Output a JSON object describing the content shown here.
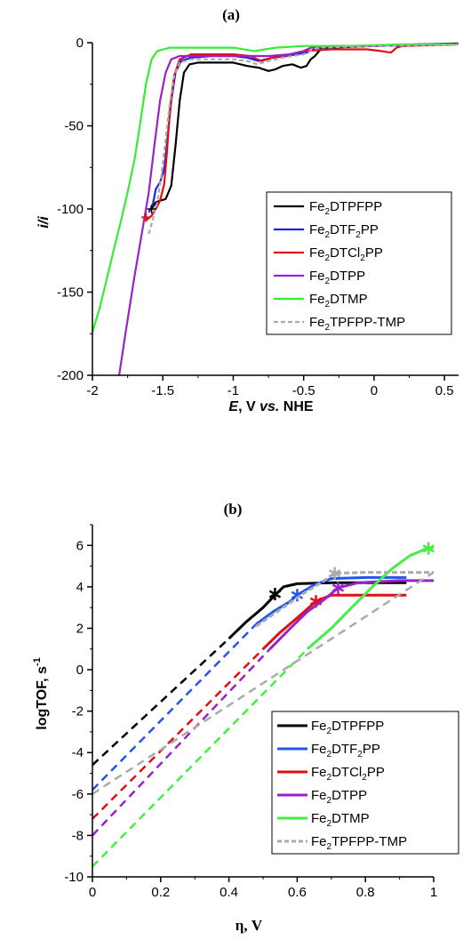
{
  "chart_data": [
    {
      "type": "line",
      "title": "(a)",
      "xlabel": {
        "italic": "E",
        "rest": ", V ",
        "italic2": "vs.",
        "rest2": " NHE"
      },
      "ylabel": "i/i",
      "xlim": [
        -2,
        0.6
      ],
      "ylim": [
        -200,
        0
      ],
      "xticks": [
        "-2",
        "-1.5",
        "-1",
        "-0.5",
        "0",
        "0.5"
      ],
      "yticks": [
        "0",
        "-50",
        "-100",
        "-150",
        "-200"
      ],
      "legend_position": "center-right",
      "series": [
        {
          "name": "Fe2DTPFPP",
          "label": [
            "Fe",
            "2",
            "DTPFPP"
          ],
          "color": "#000000",
          "dash": false,
          "points": [
            [
              -1.58,
              -100
            ],
            [
              -1.55,
              -96
            ],
            [
              -1.52,
              -95
            ],
            [
              -1.48,
              -94
            ],
            [
              -1.44,
              -86
            ],
            [
              -1.41,
              -62
            ],
            [
              -1.38,
              -35
            ],
            [
              -1.35,
              -18
            ],
            [
              -1.31,
              -13
            ],
            [
              -1.25,
              -12
            ],
            [
              -1.15,
              -12
            ],
            [
              -1.0,
              -12
            ],
            [
              -0.9,
              -14
            ],
            [
              -0.82,
              -15
            ],
            [
              -0.75,
              -17
            ],
            [
              -0.7,
              -16
            ],
            [
              -0.65,
              -14
            ],
            [
              -0.58,
              -13
            ],
            [
              -0.52,
              -15
            ],
            [
              -0.48,
              -14
            ],
            [
              -0.45,
              -10
            ],
            [
              -0.42,
              -8
            ],
            [
              -0.38,
              -4
            ],
            [
              -0.3,
              -3
            ],
            [
              0,
              -2
            ],
            [
              0.3,
              -1
            ],
            [
              0.6,
              -0.5
            ]
          ]
        },
        {
          "name": "Fe2DTF2PP",
          "label": [
            "Fe",
            "2",
            "DTF",
            "2",
            "PP"
          ],
          "color": "#2222dd",
          "dash": false,
          "points": [
            [
              -1.6,
              -102
            ],
            [
              -1.57,
              -97
            ],
            [
              -1.55,
              -88
            ],
            [
              -1.52,
              -84
            ],
            [
              -1.49,
              -76
            ],
            [
              -1.47,
              -60
            ],
            [
              -1.44,
              -35
            ],
            [
              -1.41,
              -18
            ],
            [
              -1.37,
              -11
            ],
            [
              -1.3,
              -9
            ],
            [
              -1.15,
              -8
            ],
            [
              -1.0,
              -8
            ],
            [
              -0.9,
              -9
            ],
            [
              -0.82,
              -11
            ],
            [
              -0.72,
              -9
            ],
            [
              -0.62,
              -8
            ],
            [
              -0.55,
              -7
            ],
            [
              -0.48,
              -6
            ],
            [
              -0.4,
              -3
            ],
            [
              0,
              -2
            ],
            [
              0.3,
              -1.5
            ],
            [
              0.6,
              -1
            ]
          ]
        },
        {
          "name": "Fe2DTCl2PP",
          "label": [
            "Fe",
            "2",
            "DTCl",
            "2",
            "PP"
          ],
          "color": "#dd1111",
          "dash": false,
          "points": [
            [
              -1.62,
              -107
            ],
            [
              -1.58,
              -104
            ],
            [
              -1.55,
              -100
            ],
            [
              -1.52,
              -95
            ],
            [
              -1.49,
              -85
            ],
            [
              -1.47,
              -65
            ],
            [
              -1.45,
              -40
            ],
            [
              -1.42,
              -20
            ],
            [
              -1.38,
              -10
            ],
            [
              -1.3,
              -7
            ],
            [
              -1.15,
              -7
            ],
            [
              -1.0,
              -7
            ],
            [
              -0.88,
              -8
            ],
            [
              -0.8,
              -11
            ],
            [
              -0.72,
              -9
            ],
            [
              -0.6,
              -7
            ],
            [
              -0.5,
              -5
            ],
            [
              -0.3,
              -4
            ],
            [
              -0.05,
              -4
            ],
            [
              0.05,
              -5
            ],
            [
              0.12,
              -6
            ],
            [
              0.16,
              -3
            ],
            [
              0.2,
              -2
            ],
            [
              0.6,
              -1
            ]
          ]
        },
        {
          "name": "Fe2DTPP",
          "label": [
            "Fe",
            "2",
            "DTPP"
          ],
          "color": "#9922cc",
          "dash": false,
          "points": [
            [
              -1.81,
              -200
            ],
            [
              -1.76,
              -172
            ],
            [
              -1.7,
              -140
            ],
            [
              -1.65,
              -115
            ],
            [
              -1.6,
              -90
            ],
            [
              -1.56,
              -62
            ],
            [
              -1.52,
              -35
            ],
            [
              -1.48,
              -18
            ],
            [
              -1.44,
              -10
            ],
            [
              -1.38,
              -8
            ],
            [
              -1.25,
              -8
            ],
            [
              -1.0,
              -8
            ],
            [
              -0.85,
              -8
            ],
            [
              -0.75,
              -8
            ],
            [
              -0.6,
              -7
            ],
            [
              -0.5,
              -5
            ],
            [
              -0.45,
              -3
            ],
            [
              -0.3,
              -2
            ],
            [
              0,
              -2
            ],
            [
              0.6,
              -1
            ]
          ]
        },
        {
          "name": "Fe2DTMP",
          "label": [
            "Fe",
            "2",
            "DTMP"
          ],
          "color": "#33ee33",
          "dash": false,
          "points": [
            [
              -2.0,
              -174
            ],
            [
              -1.95,
              -160
            ],
            [
              -1.9,
              -143
            ],
            [
              -1.85,
              -125
            ],
            [
              -1.8,
              -108
            ],
            [
              -1.75,
              -90
            ],
            [
              -1.7,
              -70
            ],
            [
              -1.66,
              -48
            ],
            [
              -1.62,
              -25
            ],
            [
              -1.58,
              -10
            ],
            [
              -1.54,
              -5
            ],
            [
              -1.45,
              -3
            ],
            [
              -1.2,
              -3
            ],
            [
              -1.0,
              -3
            ],
            [
              -0.85,
              -5
            ],
            [
              -0.7,
              -3
            ],
            [
              -0.5,
              -2
            ],
            [
              -0.2,
              -2
            ],
            [
              0.2,
              -1
            ],
            [
              0.6,
              -1
            ]
          ]
        },
        {
          "name": "Fe2TPFPP-TMP",
          "label": [
            "Fe",
            "2",
            "TPFPP-TMP"
          ],
          "color": "#aaaaaa",
          "dash": true,
          "points": [
            [
              -1.6,
              -115
            ],
            [
              -1.57,
              -106
            ],
            [
              -1.54,
              -96
            ],
            [
              -1.51,
              -80
            ],
            [
              -1.48,
              -58
            ],
            [
              -1.45,
              -36
            ],
            [
              -1.42,
              -20
            ],
            [
              -1.38,
              -12
            ],
            [
              -1.3,
              -10
            ],
            [
              -1.15,
              -10
            ],
            [
              -1.0,
              -10
            ],
            [
              -0.9,
              -11
            ],
            [
              -0.83,
              -13
            ],
            [
              -0.75,
              -11
            ],
            [
              -0.65,
              -9
            ],
            [
              -0.58,
              -8
            ],
            [
              -0.5,
              -7
            ],
            [
              -0.4,
              -3
            ],
            [
              0,
              -2
            ],
            [
              0.6,
              -1
            ]
          ]
        }
      ]
    },
    {
      "type": "line",
      "title": "(b)",
      "xlabel": "η, V",
      "ylabel": "logTOF, s",
      "ylabel_sup": "-1",
      "xlim": [
        0,
        1
      ],
      "ylim": [
        -10,
        7
      ],
      "xticks": [
        "0",
        "0.2",
        "0.4",
        "0.6",
        "0.8",
        "1"
      ],
      "yticks": [
        "6",
        "4",
        "2",
        "0",
        "-2",
        "-4",
        "-6",
        "-8",
        "-10"
      ],
      "legend_position": "bottom-right",
      "series": [
        {
          "name": "Fe2DTPFPP",
          "label": [
            "Fe",
            "2",
            "DTPFPP"
          ],
          "color": "#000000",
          "dashed_part": [
            [
              0,
              -4.6
            ],
            [
              0.4,
              1.5
            ]
          ],
          "solid_part": [
            [
              0.4,
              1.5
            ],
            [
              0.45,
              2.3
            ],
            [
              0.5,
              3.0
            ],
            [
              0.535,
              3.6
            ],
            [
              0.56,
              4.0
            ],
            [
              0.6,
              4.15
            ],
            [
              0.7,
              4.2
            ],
            [
              0.92,
              4.2
            ]
          ],
          "marker": [
            0.535,
            3.65
          ]
        },
        {
          "name": "Fe2DTF2PP",
          "label": [
            "Fe",
            "2",
            "DTF",
            "2",
            "PP"
          ],
          "color": "#2255ee",
          "dashed_part": [
            [
              0,
              -5.8
            ],
            [
              0.48,
              2.2
            ]
          ],
          "solid_part": [
            [
              0.48,
              2.2
            ],
            [
              0.53,
              2.8
            ],
            [
              0.58,
              3.3
            ],
            [
              0.6,
              3.6
            ],
            [
              0.65,
              4.1
            ],
            [
              0.7,
              4.4
            ],
            [
              0.8,
              4.45
            ],
            [
              0.92,
              4.45
            ]
          ],
          "marker": [
            0.6,
            3.6
          ]
        },
        {
          "name": "Fe2DTCl2PP",
          "label": [
            "Fe",
            "2",
            "DTCl",
            "2",
            "PP"
          ],
          "color": "#dd1111",
          "dashed_part": [
            [
              0,
              -7.2
            ],
            [
              0.5,
              1.0
            ]
          ],
          "solid_part": [
            [
              0.5,
              1.0
            ],
            [
              0.55,
              1.8
            ],
            [
              0.6,
              2.5
            ],
            [
              0.655,
              3.3
            ],
            [
              0.7,
              3.6
            ],
            [
              0.8,
              3.6
            ],
            [
              0.92,
              3.6
            ]
          ],
          "marker": [
            0.655,
            3.3
          ]
        },
        {
          "name": "Fe2DTPP",
          "label": [
            "Fe",
            "2",
            "DTPP"
          ],
          "color": "#9922cc",
          "dashed_part": [
            [
              0,
              -8.0
            ],
            [
              0.52,
              1.0
            ]
          ],
          "solid_part": [
            [
              0.52,
              1.0
            ],
            [
              0.58,
              2.0
            ],
            [
              0.63,
              2.8
            ],
            [
              0.68,
              3.4
            ],
            [
              0.72,
              3.95
            ],
            [
              0.78,
              4.2
            ],
            [
              0.9,
              4.3
            ],
            [
              1.0,
              4.3
            ]
          ],
          "marker": [
            0.72,
            3.95
          ]
        },
        {
          "name": "Fe2DTMP",
          "label": [
            "Fe",
            "2",
            "DTMP"
          ],
          "color": "#44ee44",
          "dashed_part": [
            [
              0,
              -9.5
            ],
            [
              0.63,
              1.0
            ]
          ],
          "solid_part": [
            [
              0.63,
              1.0
            ],
            [
              0.7,
              2.0
            ],
            [
              0.76,
              3.0
            ],
            [
              0.82,
              4.0
            ],
            [
              0.88,
              4.9
            ],
            [
              0.93,
              5.5
            ],
            [
              0.98,
              5.85
            ],
            [
              1.0,
              5.9
            ]
          ],
          "marker": [
            0.985,
            5.85
          ]
        },
        {
          "name": "Fe2TPFPP-TMP",
          "label": [
            "Fe",
            "2",
            "TPFPP-TMP"
          ],
          "color": "#aaaaaa",
          "dashed_part": [
            [
              0,
              -6.0
            ],
            [
              1.0,
              4.7
            ]
          ],
          "solid_part": [
            [
              0.48,
              2.1
            ],
            [
              0.55,
              2.9
            ],
            [
              0.62,
              3.7
            ],
            [
              0.67,
              4.2
            ],
            [
              0.71,
              4.65
            ],
            [
              0.8,
              4.7
            ],
            [
              1.0,
              4.7
            ]
          ],
          "marker": [
            0.71,
            4.65
          ]
        }
      ]
    }
  ]
}
